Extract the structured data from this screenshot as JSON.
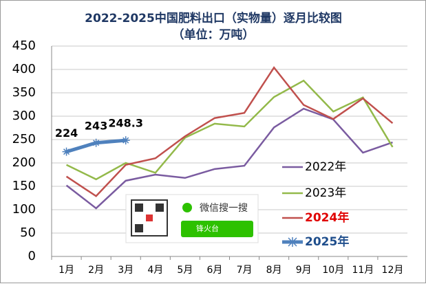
{
  "chart_data": {
    "type": "line",
    "title": "2022-2025中国肥料出口（实物量）逐月比较图",
    "subtitle": "（单位：万吨）",
    "categories": [
      "1月",
      "2月",
      "3月",
      "4月",
      "5月",
      "6月",
      "7月",
      "8月",
      "9月",
      "10月",
      "11月",
      "12月"
    ],
    "series": [
      {
        "name": "2022年",
        "color": "#7a5ba0",
        "label_color": "#000000",
        "values": [
          152,
          103,
          162,
          175,
          168,
          187,
          194,
          276,
          316,
          293,
          222,
          244
        ]
      },
      {
        "name": "2023年",
        "color": "#93b94a",
        "label_color": "#000000",
        "values": [
          196,
          165,
          200,
          179,
          254,
          284,
          278,
          341,
          376,
          310,
          340,
          234
        ]
      },
      {
        "name": "2024年",
        "color": "#c0504d",
        "label_color": "#e00000",
        "values": [
          171,
          129,
          196,
          210,
          257,
          296,
          307,
          404,
          324,
          294,
          338,
          285
        ]
      },
      {
        "name": "2025年",
        "color": "#4f81bd",
        "label_color": "#1f4e8c",
        "values": [
          224,
          243,
          248.3,
          null,
          null,
          null,
          null,
          null,
          null,
          null,
          null,
          null
        ],
        "data_labels": true
      }
    ],
    "ylim": [
      0,
      450
    ],
    "yticks": [
      0,
      50,
      100,
      150,
      200,
      250,
      300,
      350,
      400,
      450
    ],
    "grid": true,
    "legend": "right",
    "watermark": {
      "text": "微信搜一搜",
      "search": "锋火台"
    }
  }
}
